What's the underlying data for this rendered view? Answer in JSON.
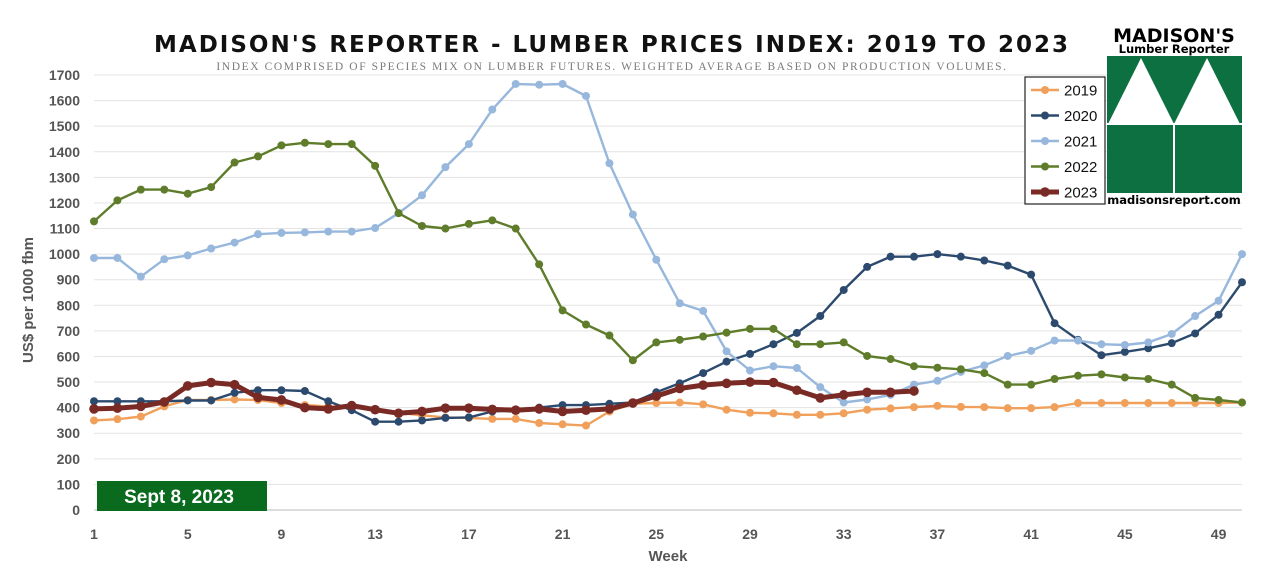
{
  "colors": {
    "2019": "#f0a05a",
    "2020": "#2c4a6e",
    "2021": "#97b7dc",
    "2022": "#5e7c2a",
    "2023": "#7a2a24",
    "brand_green": "#0d7040",
    "badge_green": "#0a6a1e"
  },
  "logo": {
    "line1": "MADISON'S",
    "line2": "Lumber Reporter",
    "url": "madisonsreport.com"
  },
  "date_badge": "Sept 8, 2023",
  "chart_data": {
    "type": "line",
    "title": "MADISON'S REPORTER - LUMBER PRICES INDEX: 2019 TO 2023",
    "subtitle": "INDEX COMPRISED OF SPECIES MIX ON LUMBER FUTURES. WEIGHTED AVERAGE BASED ON PRODUCTION VOLUMES.",
    "xlabel": "Week",
    "ylabel": "US$ per 1000 fbm",
    "xlim": [
      1,
      50
    ],
    "ylim": [
      0,
      1700
    ],
    "xticks": [
      1,
      5,
      9,
      13,
      17,
      21,
      25,
      29,
      33,
      37,
      41,
      45,
      49
    ],
    "yticks": [
      0,
      100,
      200,
      300,
      400,
      500,
      600,
      700,
      800,
      900,
      1000,
      1100,
      1200,
      1300,
      1400,
      1500,
      1600,
      1700
    ],
    "grid": "horizontal",
    "legend_position": "top-right",
    "series": [
      {
        "name": "2019",
        "values": [
          350,
          355,
          365,
          405,
          430,
          430,
          432,
          430,
          418,
          410,
          405,
          400,
          393,
          380,
          370,
          362,
          360,
          356,
          356,
          340,
          335,
          330,
          385,
          415,
          418,
          420,
          413,
          392,
          380,
          378,
          372,
          372,
          378,
          392,
          397,
          402,
          407,
          403,
          402,
          398,
          398,
          402,
          418,
          418,
          418,
          418,
          418,
          418,
          418,
          420
        ]
      },
      {
        "name": "2020",
        "values": [
          425,
          425,
          425,
          425,
          428,
          428,
          458,
          468,
          468,
          465,
          425,
          390,
          345,
          345,
          350,
          360,
          362,
          385,
          390,
          400,
          410,
          410,
          415,
          420,
          460,
          495,
          535,
          580,
          610,
          648,
          692,
          758,
          860,
          950,
          990,
          990,
          1000,
          990,
          975,
          955,
          920,
          730,
          665,
          605,
          618,
          632,
          652,
          690,
          763,
          890
        ]
      },
      {
        "name": "2021",
        "values": [
          985,
          985,
          912,
          980,
          995,
          1022,
          1045,
          1078,
          1083,
          1085,
          1088,
          1088,
          1102,
          1160,
          1230,
          1340,
          1430,
          1565,
          1665,
          1662,
          1665,
          1618,
          1355,
          1155,
          978,
          808,
          778,
          620,
          545,
          562,
          555,
          480,
          420,
          432,
          450,
          490,
          505,
          540,
          565,
          602,
          622,
          662,
          662,
          648,
          645,
          655,
          688,
          758,
          818,
          1000
        ]
      },
      {
        "name": "2022",
        "values": [
          1128,
          1210,
          1252,
          1252,
          1236,
          1262,
          1358,
          1382,
          1425,
          1435,
          1430,
          1430,
          1345,
          1160,
          1110,
          1100,
          1118,
          1132,
          1100,
          960,
          780,
          725,
          682,
          585,
          655,
          665,
          678,
          693,
          708,
          708,
          648,
          648,
          655,
          602,
          590,
          562,
          556,
          550,
          535,
          490,
          490,
          512,
          525,
          530,
          518,
          512,
          490,
          438,
          430,
          420
        ]
      },
      {
        "name": "2023",
        "values": [
          395,
          398,
          405,
          422,
          485,
          498,
          490,
          440,
          430,
          400,
          395,
          408,
          392,
          378,
          385,
          398,
          398,
          393,
          390,
          395,
          385,
          390,
          395,
          418,
          445,
          475,
          488,
          495,
          500,
          498,
          468,
          438,
          450,
          460,
          460,
          465
        ]
      }
    ]
  }
}
